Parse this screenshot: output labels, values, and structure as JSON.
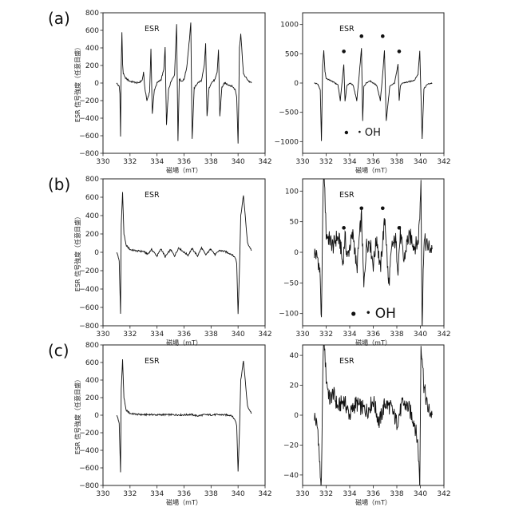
{
  "panel_labels": [
    "(a)",
    "(b)",
    "(c)"
  ],
  "chart_data": [
    {
      "type": "line",
      "row": 0,
      "col": 0,
      "title": "ESR",
      "xlabel": "磁場（mT）",
      "ylabel": "ESR 信号強度（任意目盛）",
      "xlim": [
        330,
        342
      ],
      "ylim": [
        -800,
        800
      ],
      "xticks": [
        330,
        332,
        334,
        336,
        338,
        340,
        342
      ],
      "yticks": [
        -800,
        -600,
        -400,
        -200,
        0,
        200,
        400,
        600,
        800
      ],
      "series": [
        {
          "x": [
            331.0,
            331.2,
            331.25,
            331.3,
            331.35,
            331.4,
            331.45,
            331.5,
            331.6,
            331.8,
            332.0,
            332.3,
            332.6,
            332.9,
            333.0,
            333.1,
            333.25,
            333.45,
            333.55,
            333.65,
            333.8,
            334.0,
            334.3,
            334.5,
            334.6,
            334.7,
            334.85,
            335.0,
            335.3,
            335.45,
            335.55,
            335.65,
            335.8,
            336.0,
            336.2,
            336.4,
            336.5,
            336.6,
            336.75,
            337.0,
            337.3,
            337.5,
            337.6,
            337.7,
            337.85,
            338.0,
            338.3,
            338.45,
            338.55,
            338.65,
            338.8,
            339.0,
            339.3,
            339.6,
            339.8,
            339.9,
            340.0,
            340.05,
            340.1,
            340.2,
            340.4,
            340.8,
            341.0
          ],
          "y": [
            0,
            -40,
            -120,
            -600,
            200,
            580,
            220,
            110,
            70,
            40,
            20,
            10,
            0,
            30,
            120,
            -60,
            -200,
            -100,
            380,
            -350,
            -80,
            0,
            40,
            150,
            400,
            -480,
            -80,
            0,
            100,
            680,
            -660,
            50,
            20,
            40,
            180,
            500,
            680,
            -640,
            -60,
            0,
            30,
            200,
            450,
            -380,
            -60,
            0,
            40,
            120,
            380,
            -380,
            -50,
            0,
            -20,
            -40,
            -80,
            -160,
            -680,
            -220,
            400,
            560,
            100,
            20,
            0
          ]
        }
      ],
      "annotations": []
    },
    {
      "type": "line",
      "row": 0,
      "col": 1,
      "title": "ESR",
      "xlabel": "磁場（mT）",
      "xlim": [
        330,
        342
      ],
      "ylim": [
        -1200,
        1200
      ],
      "xticks": [
        330,
        332,
        334,
        336,
        338,
        340,
        342
      ],
      "yticks": [
        -1000,
        -500,
        0,
        500,
        1000
      ],
      "legend_label": "・OH",
      "series": [
        {
          "x": [
            331.0,
            331.3,
            331.5,
            331.6,
            331.7,
            331.8,
            331.9,
            332.0,
            332.5,
            333.0,
            333.2,
            333.4,
            333.5,
            333.6,
            333.75,
            334.0,
            334.3,
            334.6,
            334.8,
            335.0,
            335.1,
            335.2,
            335.4,
            335.7,
            336.0,
            336.3,
            336.6,
            336.8,
            336.95,
            337.1,
            337.4,
            337.8,
            337.95,
            338.1,
            338.2,
            338.3,
            338.5,
            339.0,
            339.5,
            339.8,
            339.95,
            340.05,
            340.15,
            340.3,
            340.6,
            341.0
          ],
          "y": [
            0,
            -20,
            -120,
            -1000,
            300,
            550,
            200,
            80,
            30,
            -30,
            -300,
            120,
            320,
            -320,
            -50,
            0,
            -40,
            -300,
            120,
            600,
            -650,
            -60,
            0,
            40,
            0,
            -40,
            -300,
            150,
            560,
            -650,
            -60,
            0,
            150,
            330,
            -300,
            -50,
            0,
            20,
            50,
            150,
            550,
            -200,
            -950,
            -100,
            -20,
            0
          ]
        }
      ],
      "markers": [
        {
          "x": 333.5,
          "y": 540
        },
        {
          "x": 335.0,
          "y": 800
        },
        {
          "x": 336.8,
          "y": 800
        },
        {
          "x": 338.2,
          "y": 540
        }
      ],
      "legend": {
        "position": "lower-center"
      }
    },
    {
      "type": "line",
      "row": 1,
      "col": 0,
      "title": "ESR",
      "xlabel": "磁場（mT）",
      "ylabel": "ESR 信号強度（任意目盛）",
      "xlim": [
        330,
        342
      ],
      "ylim": [
        -800,
        800
      ],
      "xticks": [
        330,
        332,
        334,
        336,
        338,
        340,
        342
      ],
      "yticks": [
        -800,
        -600,
        -400,
        -200,
        0,
        200,
        400,
        600,
        800
      ],
      "series": [
        {
          "x": [
            331.0,
            331.1,
            331.2,
            331.3,
            331.35,
            331.45,
            331.55,
            331.7,
            332.0,
            332.5,
            333.0,
            333.3,
            333.6,
            334.0,
            334.3,
            334.6,
            335.0,
            335.3,
            335.6,
            336.0,
            336.3,
            336.6,
            337.0,
            337.3,
            337.6,
            338.0,
            338.3,
            338.6,
            339.0,
            339.5,
            339.8,
            339.9,
            340.0,
            340.1,
            340.2,
            340.4,
            340.7,
            341.0
          ],
          "y": [
            0,
            -30,
            -100,
            -670,
            300,
            650,
            200,
            80,
            30,
            15,
            10,
            -20,
            30,
            -40,
            40,
            -50,
            30,
            -40,
            50,
            0,
            -30,
            40,
            -40,
            50,
            -30,
            40,
            -30,
            20,
            10,
            -20,
            -60,
            -120,
            -670,
            -200,
            400,
            620,
            100,
            20
          ]
        }
      ]
    },
    {
      "type": "line",
      "row": 1,
      "col": 1,
      "title": "ESR",
      "xlabel": "磁場（mT）",
      "xlim": [
        330,
        342
      ],
      "ylim": [
        -120,
        120
      ],
      "xticks": [
        330,
        332,
        334,
        336,
        338,
        340,
        342
      ],
      "yticks": [
        -100,
        -50,
        0,
        50,
        100
      ],
      "legend_label": "・OH",
      "series": [
        {
          "x": [
            331.0,
            331.3,
            331.5,
            331.6,
            331.75,
            331.85,
            332.0,
            332.3,
            332.6,
            332.9,
            333.2,
            333.4,
            333.6,
            333.8,
            334.0,
            334.3,
            334.6,
            334.8,
            335.0,
            335.2,
            335.4,
            335.7,
            336.0,
            336.3,
            336.6,
            336.8,
            337.0,
            337.3,
            337.6,
            337.9,
            338.1,
            338.3,
            338.6,
            338.9,
            339.2,
            339.5,
            339.8,
            339.95,
            340.05,
            340.15,
            340.3,
            340.6,
            341.0
          ],
          "y": [
            0,
            -10,
            -40,
            -120,
            120,
            120,
            30,
            20,
            10,
            25,
            15,
            -20,
            25,
            -10,
            10,
            30,
            -30,
            20,
            60,
            -60,
            10,
            20,
            -20,
            25,
            -30,
            20,
            55,
            -55,
            10,
            20,
            -25,
            30,
            -15,
            20,
            25,
            10,
            15,
            60,
            120,
            -120,
            20,
            10,
            5
          ]
        }
      ],
      "markers": [
        {
          "x": 333.5,
          "y": 40
        },
        {
          "x": 335.0,
          "y": 72
        },
        {
          "x": 336.8,
          "y": 72
        },
        {
          "x": 338.2,
          "y": 40
        }
      ],
      "legend": {
        "position": "lower-center"
      }
    },
    {
      "type": "line",
      "row": 2,
      "col": 0,
      "title": "ESR",
      "xlabel": "磁場（mT）",
      "ylabel": "ESR 信号強度（任意目盛）",
      "xlim": [
        330,
        342
      ],
      "ylim": [
        -800,
        800
      ],
      "xticks": [
        330,
        332,
        334,
        336,
        338,
        340,
        342
      ],
      "yticks": [
        -800,
        -600,
        -400,
        -200,
        0,
        200,
        400,
        600,
        800
      ],
      "series": [
        {
          "x": [
            331.0,
            331.1,
            331.2,
            331.3,
            331.35,
            331.45,
            331.55,
            331.7,
            332.0,
            332.5,
            333.0,
            333.5,
            334.0,
            334.5,
            335.0,
            335.5,
            336.0,
            336.5,
            337.0,
            337.5,
            338.0,
            338.5,
            339.0,
            339.5,
            339.8,
            339.9,
            340.0,
            340.1,
            340.2,
            340.4,
            340.7,
            341.0
          ],
          "y": [
            0,
            -30,
            -100,
            -650,
            300,
            630,
            200,
            60,
            20,
            10,
            5,
            8,
            3,
            6,
            5,
            4,
            3,
            8,
            -8,
            5,
            4,
            6,
            3,
            0,
            -60,
            -120,
            -640,
            -200,
            400,
            620,
            100,
            20
          ]
        }
      ]
    },
    {
      "type": "line",
      "row": 2,
      "col": 1,
      "title": "ESR",
      "xlabel": "磁場（mT）",
      "xlim": [
        330,
        342
      ],
      "ylim": [
        -47,
        47
      ],
      "xticks": [
        330,
        332,
        334,
        336,
        338,
        340,
        342
      ],
      "yticks": [
        -40,
        -20,
        0,
        20,
        40
      ],
      "series": [
        {
          "x": [
            331.0,
            331.3,
            331.5,
            331.6,
            331.75,
            331.85,
            332.0,
            332.3,
            332.6,
            333.0,
            333.5,
            334.0,
            334.5,
            335.0,
            335.5,
            336.0,
            336.5,
            337.0,
            337.5,
            338.0,
            338.5,
            339.0,
            339.5,
            339.8,
            339.95,
            340.05,
            340.15,
            340.3,
            340.6,
            341.0
          ],
          "y": [
            0,
            -10,
            -40,
            -47,
            47,
            47,
            25,
            10,
            15,
            5,
            10,
            0,
            8,
            5,
            3,
            10,
            -5,
            8,
            5,
            -5,
            8,
            5,
            -5,
            -20,
            -47,
            47,
            40,
            20,
            5,
            0
          ]
        }
      ]
    }
  ]
}
